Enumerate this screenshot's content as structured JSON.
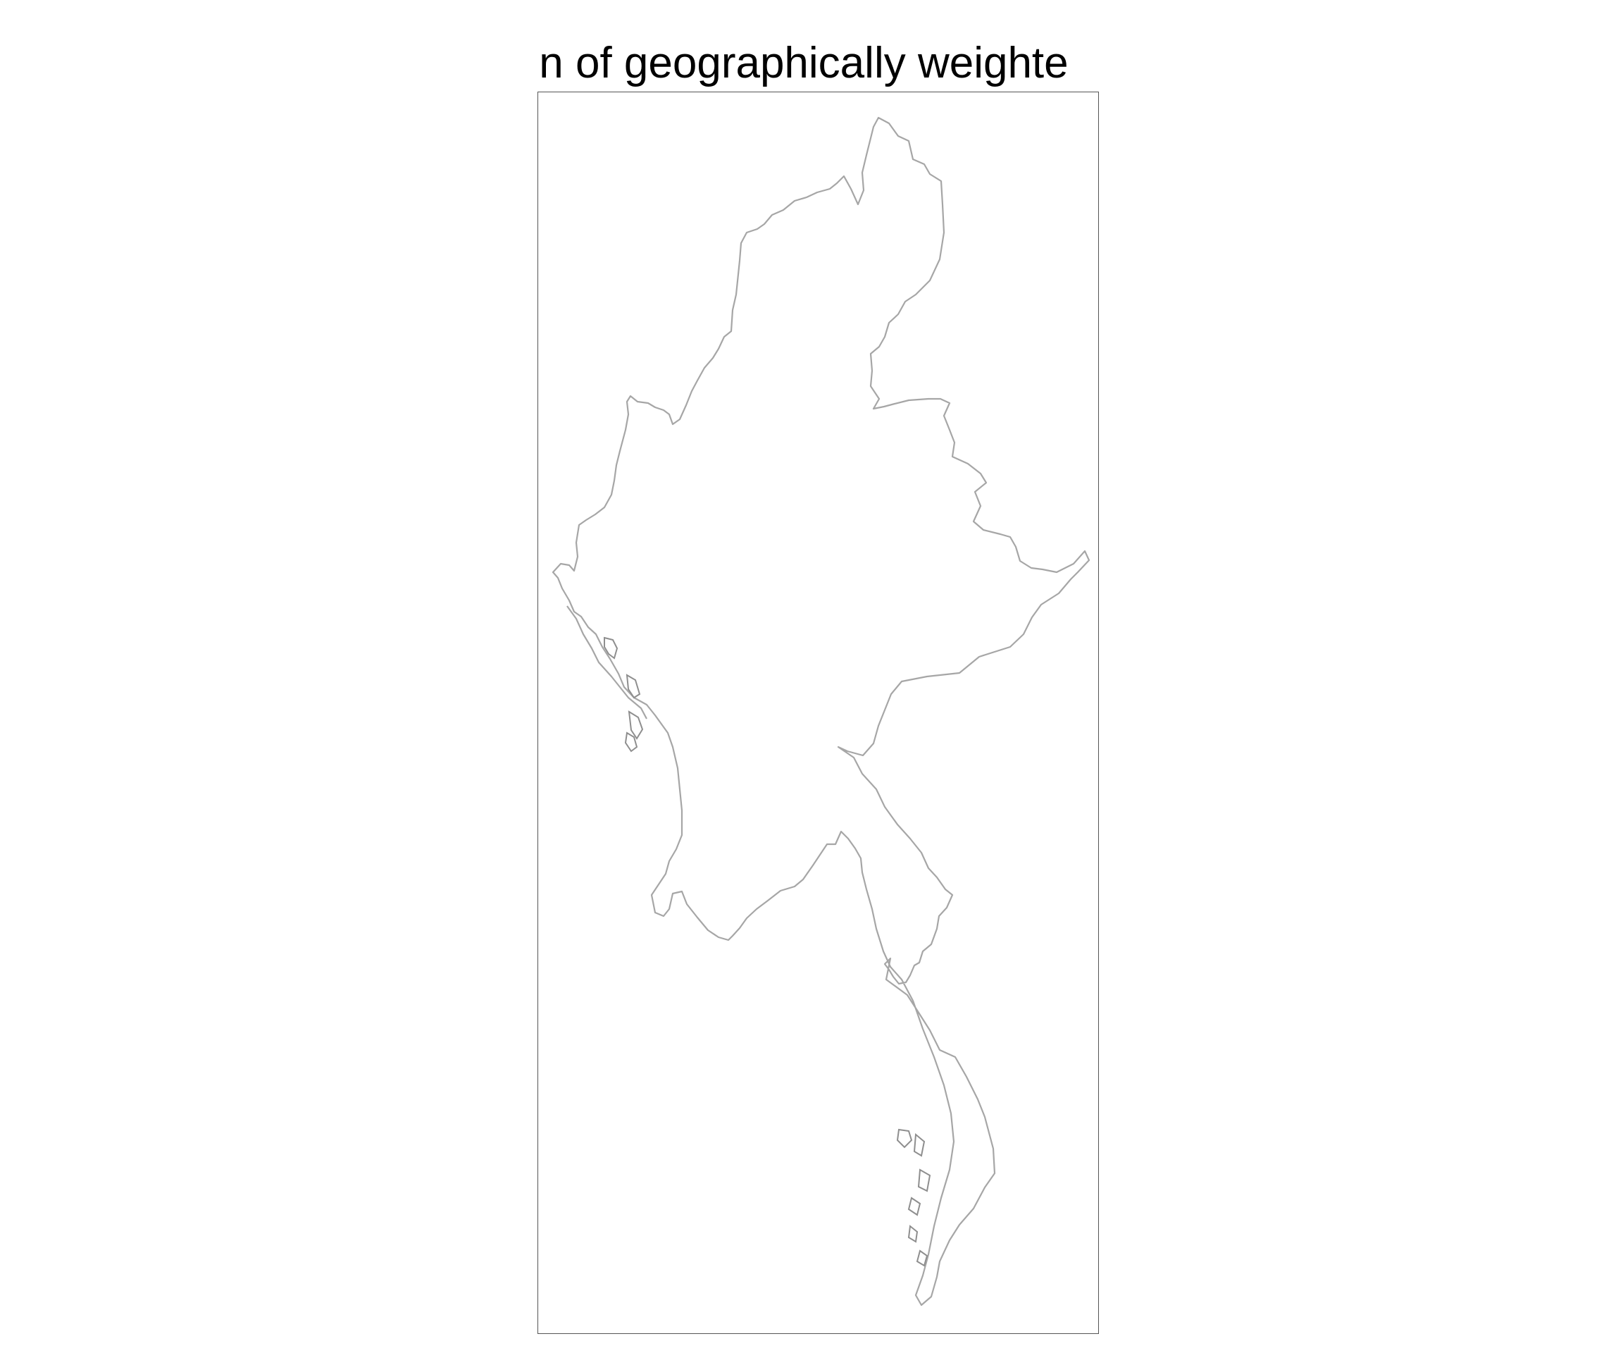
{
  "map": {
    "title": "ion of geographically weighte",
    "region_outline_color": "#a6a6a6",
    "frame_color": "#555555",
    "background_color": "#ffffff"
  }
}
